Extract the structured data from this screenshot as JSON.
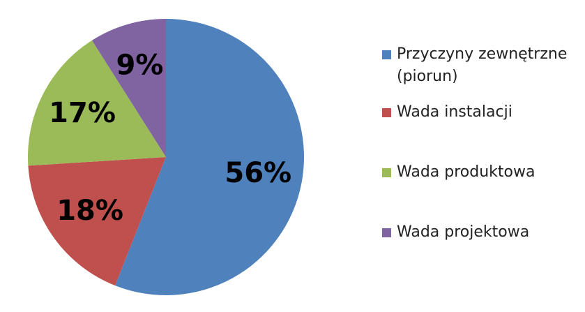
{
  "chart_data": {
    "type": "pie",
    "categories": [
      "Przyczyny zewnętrzne (piorun)",
      "Wada instalacji",
      "Wada produktowa",
      "Wada projektowa"
    ],
    "values": [
      56,
      18,
      17,
      9
    ],
    "value_labels": [
      "56%",
      "18%",
      "17%",
      "9%"
    ],
    "colors": [
      "#4f81bd",
      "#c0504d",
      "#9bbb59",
      "#8064a2"
    ],
    "legend": "right"
  }
}
